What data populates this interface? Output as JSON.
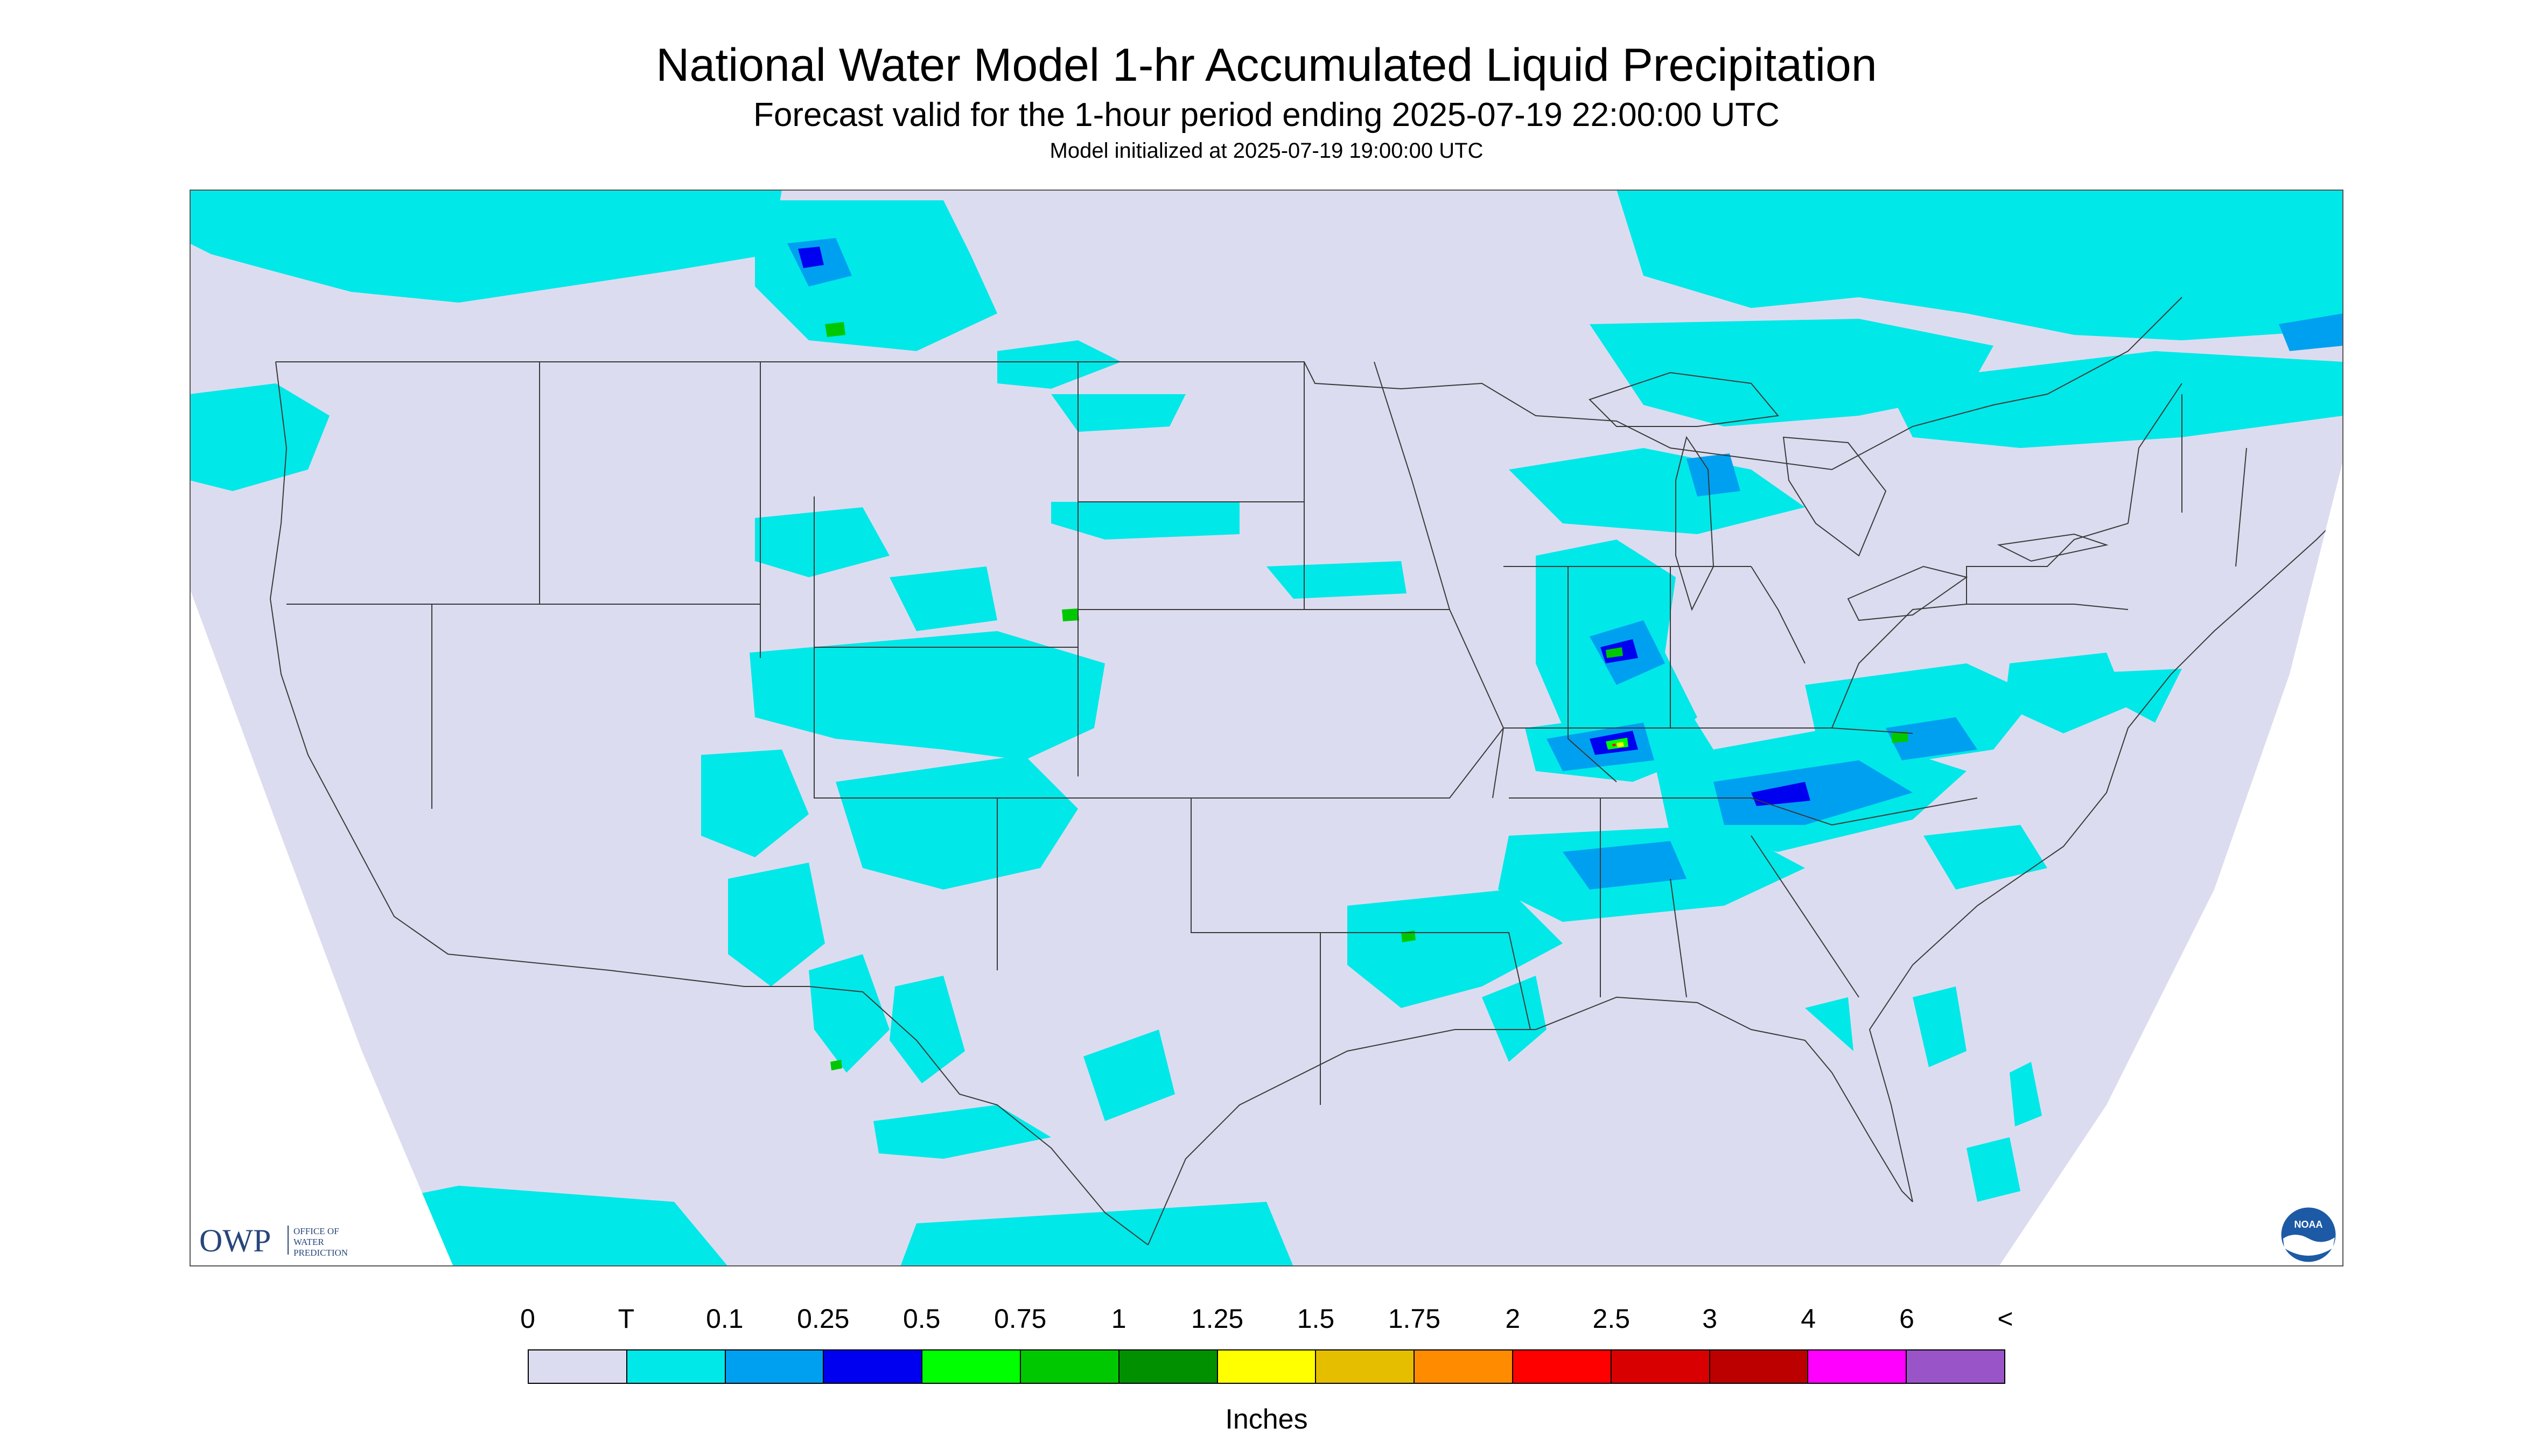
{
  "header": {
    "title": "National Water Model 1-hr Accumulated Liquid Precipitation",
    "subtitle": "Forecast valid for the 1-hour period ending 2025-07-19 22:00:00 UTC",
    "init_line": "Model initialized at 2025-07-19 19:00:00 UTC"
  },
  "map": {
    "background_color": "#dcdcf0",
    "outside_color": "#ffffff",
    "boundary_color": "#3a3a3a"
  },
  "owp_logo": {
    "letters": "OWP",
    "line1": "OFFICE OF",
    "line2": "WATER",
    "line3": "PREDICTION",
    "color": "#27467a"
  },
  "noaa_logo": {
    "text": "NOAA",
    "color": "#1d5aa6"
  },
  "legend": {
    "tick_labels": [
      "0",
      "T",
      "0.1",
      "0.25",
      "0.5",
      "0.75",
      "1",
      "1.25",
      "1.5",
      "1.75",
      "2",
      "2.5",
      "3",
      "4",
      "6",
      "<"
    ],
    "colors": [
      "#dcdcf0",
      "#00e8e8",
      "#00a0f0",
      "#0000f0",
      "#00ff00",
      "#00c800",
      "#009000",
      "#ffff00",
      "#e6be00",
      "#ff8c00",
      "#ff0000",
      "#d80000",
      "#bc0000",
      "#ff00ff",
      "#9954c8"
    ],
    "units": "Inches"
  }
}
